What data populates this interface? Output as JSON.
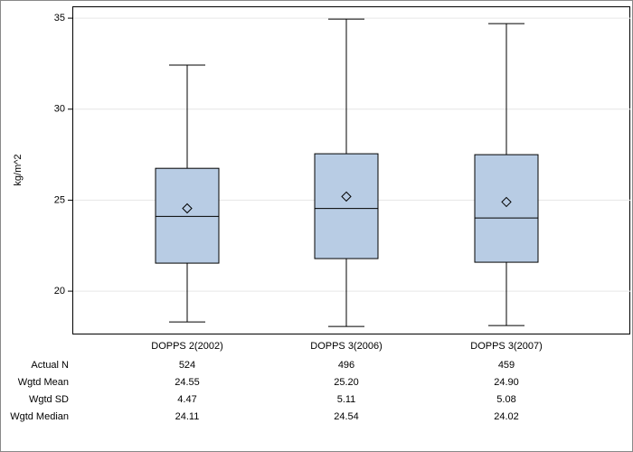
{
  "chart_data": {
    "type": "box",
    "y_label": "kg/m^2",
    "categories": [
      "DOPPS 2(2002)",
      "DOPPS 3(2006)",
      "DOPPS 3(2007)"
    ],
    "whisker_low": [
      18.31,
      18.06,
      18.11
    ],
    "q1": [
      21.54,
      21.79,
      21.59
    ],
    "median": [
      24.11,
      24.54,
      24.02
    ],
    "q3": [
      26.75,
      27.55,
      27.5
    ],
    "whisker_high": [
      32.42,
      34.95,
      34.7
    ],
    "mean": [
      24.55,
      25.2,
      24.9
    ],
    "color": "#b8cce4",
    "ylim": [
      17.67,
      35.65
    ],
    "yticks": [
      20,
      25,
      30,
      35
    ],
    "grid": true
  },
  "table": {
    "rows": [
      [
        "Actual N",
        "524",
        "496",
        "459"
      ],
      [
        "Wgtd Mean",
        "24.55",
        "25.20",
        "24.90"
      ],
      [
        "Wgtd SD",
        "4.47",
        "5.11",
        "5.08"
      ],
      [
        "Wgtd Median",
        "24.11",
        "24.54",
        "24.02"
      ]
    ]
  }
}
